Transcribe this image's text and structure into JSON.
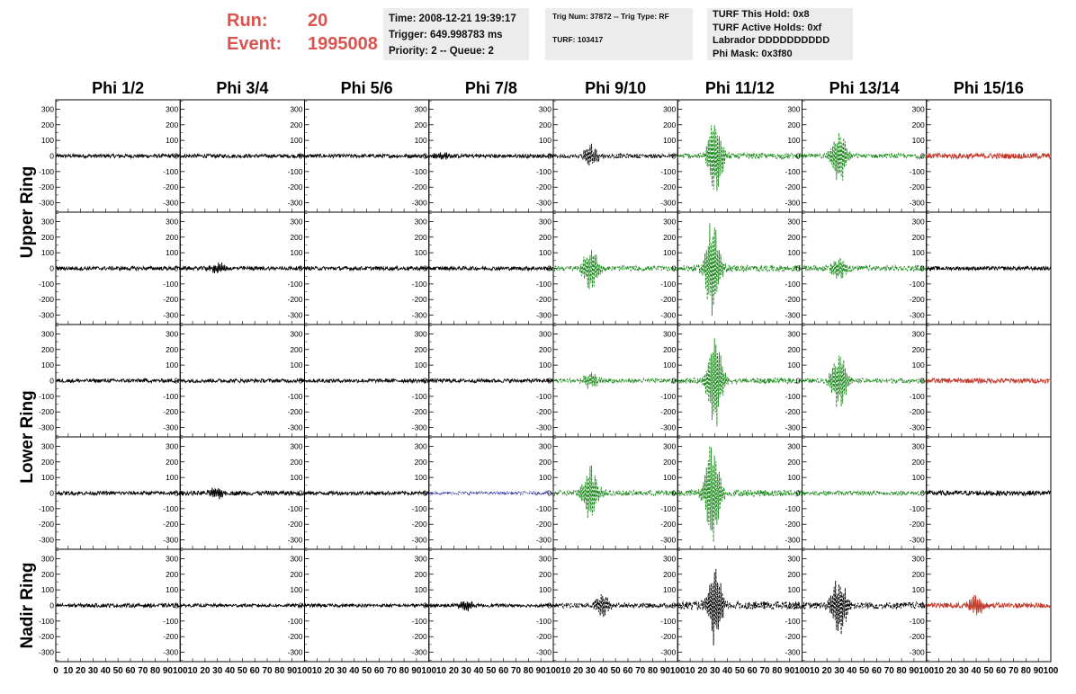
{
  "header": {
    "run_label": "Run:",
    "run_value": "20",
    "event_label": "Event:",
    "event_value": "1995008",
    "time_box": [
      "Time: 2008-12-21 19:39:17",
      "Trigger: 649.998783 ms",
      "Priority: 2 -- Queue: 2"
    ],
    "trig_box": [
      "Trig Num: 37872 -- Trig Type: RF",
      "TURF: 103417"
    ],
    "turf_box": [
      "TURF This Hold: 0x8",
      "TURF Active Holds: 0xf",
      "Labrador DDDDDDDDDD",
      "Phi Mask: 0x3f80"
    ]
  },
  "colors": {
    "accent": "#d9534f",
    "box_bg": "#ececec",
    "black": "#000000",
    "green": "#1e8a1e",
    "red": "#c0392b",
    "blue": "#3030a0"
  },
  "chart_data": {
    "type": "line",
    "columns": [
      "Phi 1/2",
      "Phi 3/4",
      "Phi 5/6",
      "Phi 7/8",
      "Phi 9/10",
      "Phi 11/12",
      "Phi 13/14",
      "Phi 15/16"
    ],
    "ring_labels": [
      "Upper Ring",
      "Lower Ring",
      "Nadir Ring"
    ],
    "yticks": [
      300,
      200,
      100,
      0,
      -100,
      -200,
      -300
    ],
    "ylim": [
      -360,
      360
    ],
    "xlim": [
      0,
      100
    ],
    "xticks_first": [
      "0",
      "10",
      "20",
      "30",
      "40",
      "50",
      "60",
      "70",
      "80",
      "90",
      "100"
    ],
    "xticks_other": [
      "10",
      "20",
      "30",
      "40",
      "50",
      "60",
      "70",
      "80",
      "90",
      "100"
    ],
    "panels": [
      [
        {
          "color": "black",
          "style": "solid",
          "amplitude": 12,
          "burst_center": 0,
          "burst_amplitude": 0
        },
        {
          "color": "black",
          "style": "solid",
          "amplitude": 12,
          "burst_center": 0,
          "burst_amplitude": 0
        },
        {
          "color": "black",
          "style": "solid",
          "amplitude": 12,
          "burst_center": 0,
          "burst_amplitude": 0
        },
        {
          "color": "black",
          "style": "solid",
          "amplitude": 12,
          "burst_center": 10,
          "burst_amplitude": 30
        },
        {
          "color": "black",
          "style": "dashed",
          "amplitude": 14,
          "burst_center": 30,
          "burst_amplitude": 80
        },
        {
          "color": "green",
          "style": "dashed",
          "amplitude": 18,
          "burst_center": 30,
          "burst_amplitude": 280
        },
        {
          "color": "green",
          "style": "dashed",
          "amplitude": 15,
          "burst_center": 30,
          "burst_amplitude": 190
        },
        {
          "color": "red",
          "style": "solid",
          "amplitude": 18,
          "burst_center": 0,
          "burst_amplitude": 0
        }
      ],
      [
        {
          "color": "black",
          "style": "solid",
          "amplitude": 12,
          "burst_center": 0,
          "burst_amplitude": 0
        },
        {
          "color": "black",
          "style": "solid",
          "amplitude": 12,
          "burst_center": 30,
          "burst_amplitude": 40
        },
        {
          "color": "black",
          "style": "solid",
          "amplitude": 12,
          "burst_center": 0,
          "burst_amplitude": 0
        },
        {
          "color": "black",
          "style": "solid",
          "amplitude": 12,
          "burst_center": 0,
          "burst_amplitude": 0
        },
        {
          "color": "green",
          "style": "dashed",
          "amplitude": 16,
          "burst_center": 30,
          "burst_amplitude": 160
        },
        {
          "color": "green",
          "style": "dashed",
          "amplitude": 20,
          "burst_center": 28,
          "burst_amplitude": 330
        },
        {
          "color": "green",
          "style": "dashed",
          "amplitude": 18,
          "burst_center": 30,
          "burst_amplitude": 80
        },
        {
          "color": "black",
          "style": "solid",
          "amplitude": 12,
          "burst_center": 0,
          "burst_amplitude": 0
        }
      ],
      [
        {
          "color": "black",
          "style": "solid",
          "amplitude": 12,
          "burst_center": 0,
          "burst_amplitude": 0
        },
        {
          "color": "black",
          "style": "solid",
          "amplitude": 12,
          "burst_center": 0,
          "burst_amplitude": 0
        },
        {
          "color": "black",
          "style": "solid",
          "amplitude": 12,
          "burst_center": 0,
          "burst_amplitude": 0
        },
        {
          "color": "black",
          "style": "solid",
          "amplitude": 12,
          "burst_center": 0,
          "burst_amplitude": 0
        },
        {
          "color": "green",
          "style": "dashed",
          "amplitude": 15,
          "burst_center": 30,
          "burst_amplitude": 50
        },
        {
          "color": "green",
          "style": "dashed",
          "amplitude": 18,
          "burst_center": 30,
          "burst_amplitude": 320
        },
        {
          "color": "green",
          "style": "dashed",
          "amplitude": 15,
          "burst_center": 30,
          "burst_amplitude": 200
        },
        {
          "color": "red",
          "style": "solid",
          "amplitude": 16,
          "burst_center": 0,
          "burst_amplitude": 0
        }
      ],
      [
        {
          "color": "black",
          "style": "solid",
          "amplitude": 12,
          "burst_center": 0,
          "burst_amplitude": 0
        },
        {
          "color": "black",
          "style": "solid",
          "amplitude": 14,
          "burst_center": 30,
          "burst_amplitude": 45
        },
        {
          "color": "black",
          "style": "solid",
          "amplitude": 12,
          "burst_center": 0,
          "burst_amplitude": 0
        },
        {
          "color": "blue",
          "style": "dotted",
          "amplitude": 10,
          "burst_center": 0,
          "burst_amplitude": 0
        },
        {
          "color": "green",
          "style": "dashed",
          "amplitude": 18,
          "burst_center": 30,
          "burst_amplitude": 190
        },
        {
          "color": "green",
          "style": "dashed",
          "amplitude": 22,
          "burst_center": 28,
          "burst_amplitude": 380
        },
        {
          "color": "green",
          "style": "dashed",
          "amplitude": 14,
          "burst_center": 0,
          "burst_amplitude": 0
        },
        {
          "color": "black",
          "style": "solid",
          "amplitude": 16,
          "burst_center": 0,
          "burst_amplitude": 0
        }
      ],
      [
        {
          "color": "black",
          "style": "solid",
          "amplitude": 12,
          "burst_center": 0,
          "burst_amplitude": 0
        },
        {
          "color": "black",
          "style": "solid",
          "amplitude": 10,
          "burst_center": 0,
          "burst_amplitude": 0
        },
        {
          "color": "black",
          "style": "solid",
          "amplitude": 10,
          "burst_center": 0,
          "burst_amplitude": 0
        },
        {
          "color": "black",
          "style": "solid",
          "amplitude": 10,
          "burst_center": 30,
          "burst_amplitude": 40
        },
        {
          "color": "black",
          "style": "dashed",
          "amplitude": 16,
          "burst_center": 40,
          "burst_amplitude": 80
        },
        {
          "color": "black",
          "style": "dashed",
          "amplitude": 26,
          "burst_center": 30,
          "burst_amplitude": 290
        },
        {
          "color": "black",
          "style": "dashed",
          "amplitude": 22,
          "burst_center": 30,
          "burst_amplitude": 210
        },
        {
          "color": "red",
          "style": "solid",
          "amplitude": 18,
          "burst_center": 40,
          "burst_amplitude": 70
        }
      ]
    ]
  }
}
